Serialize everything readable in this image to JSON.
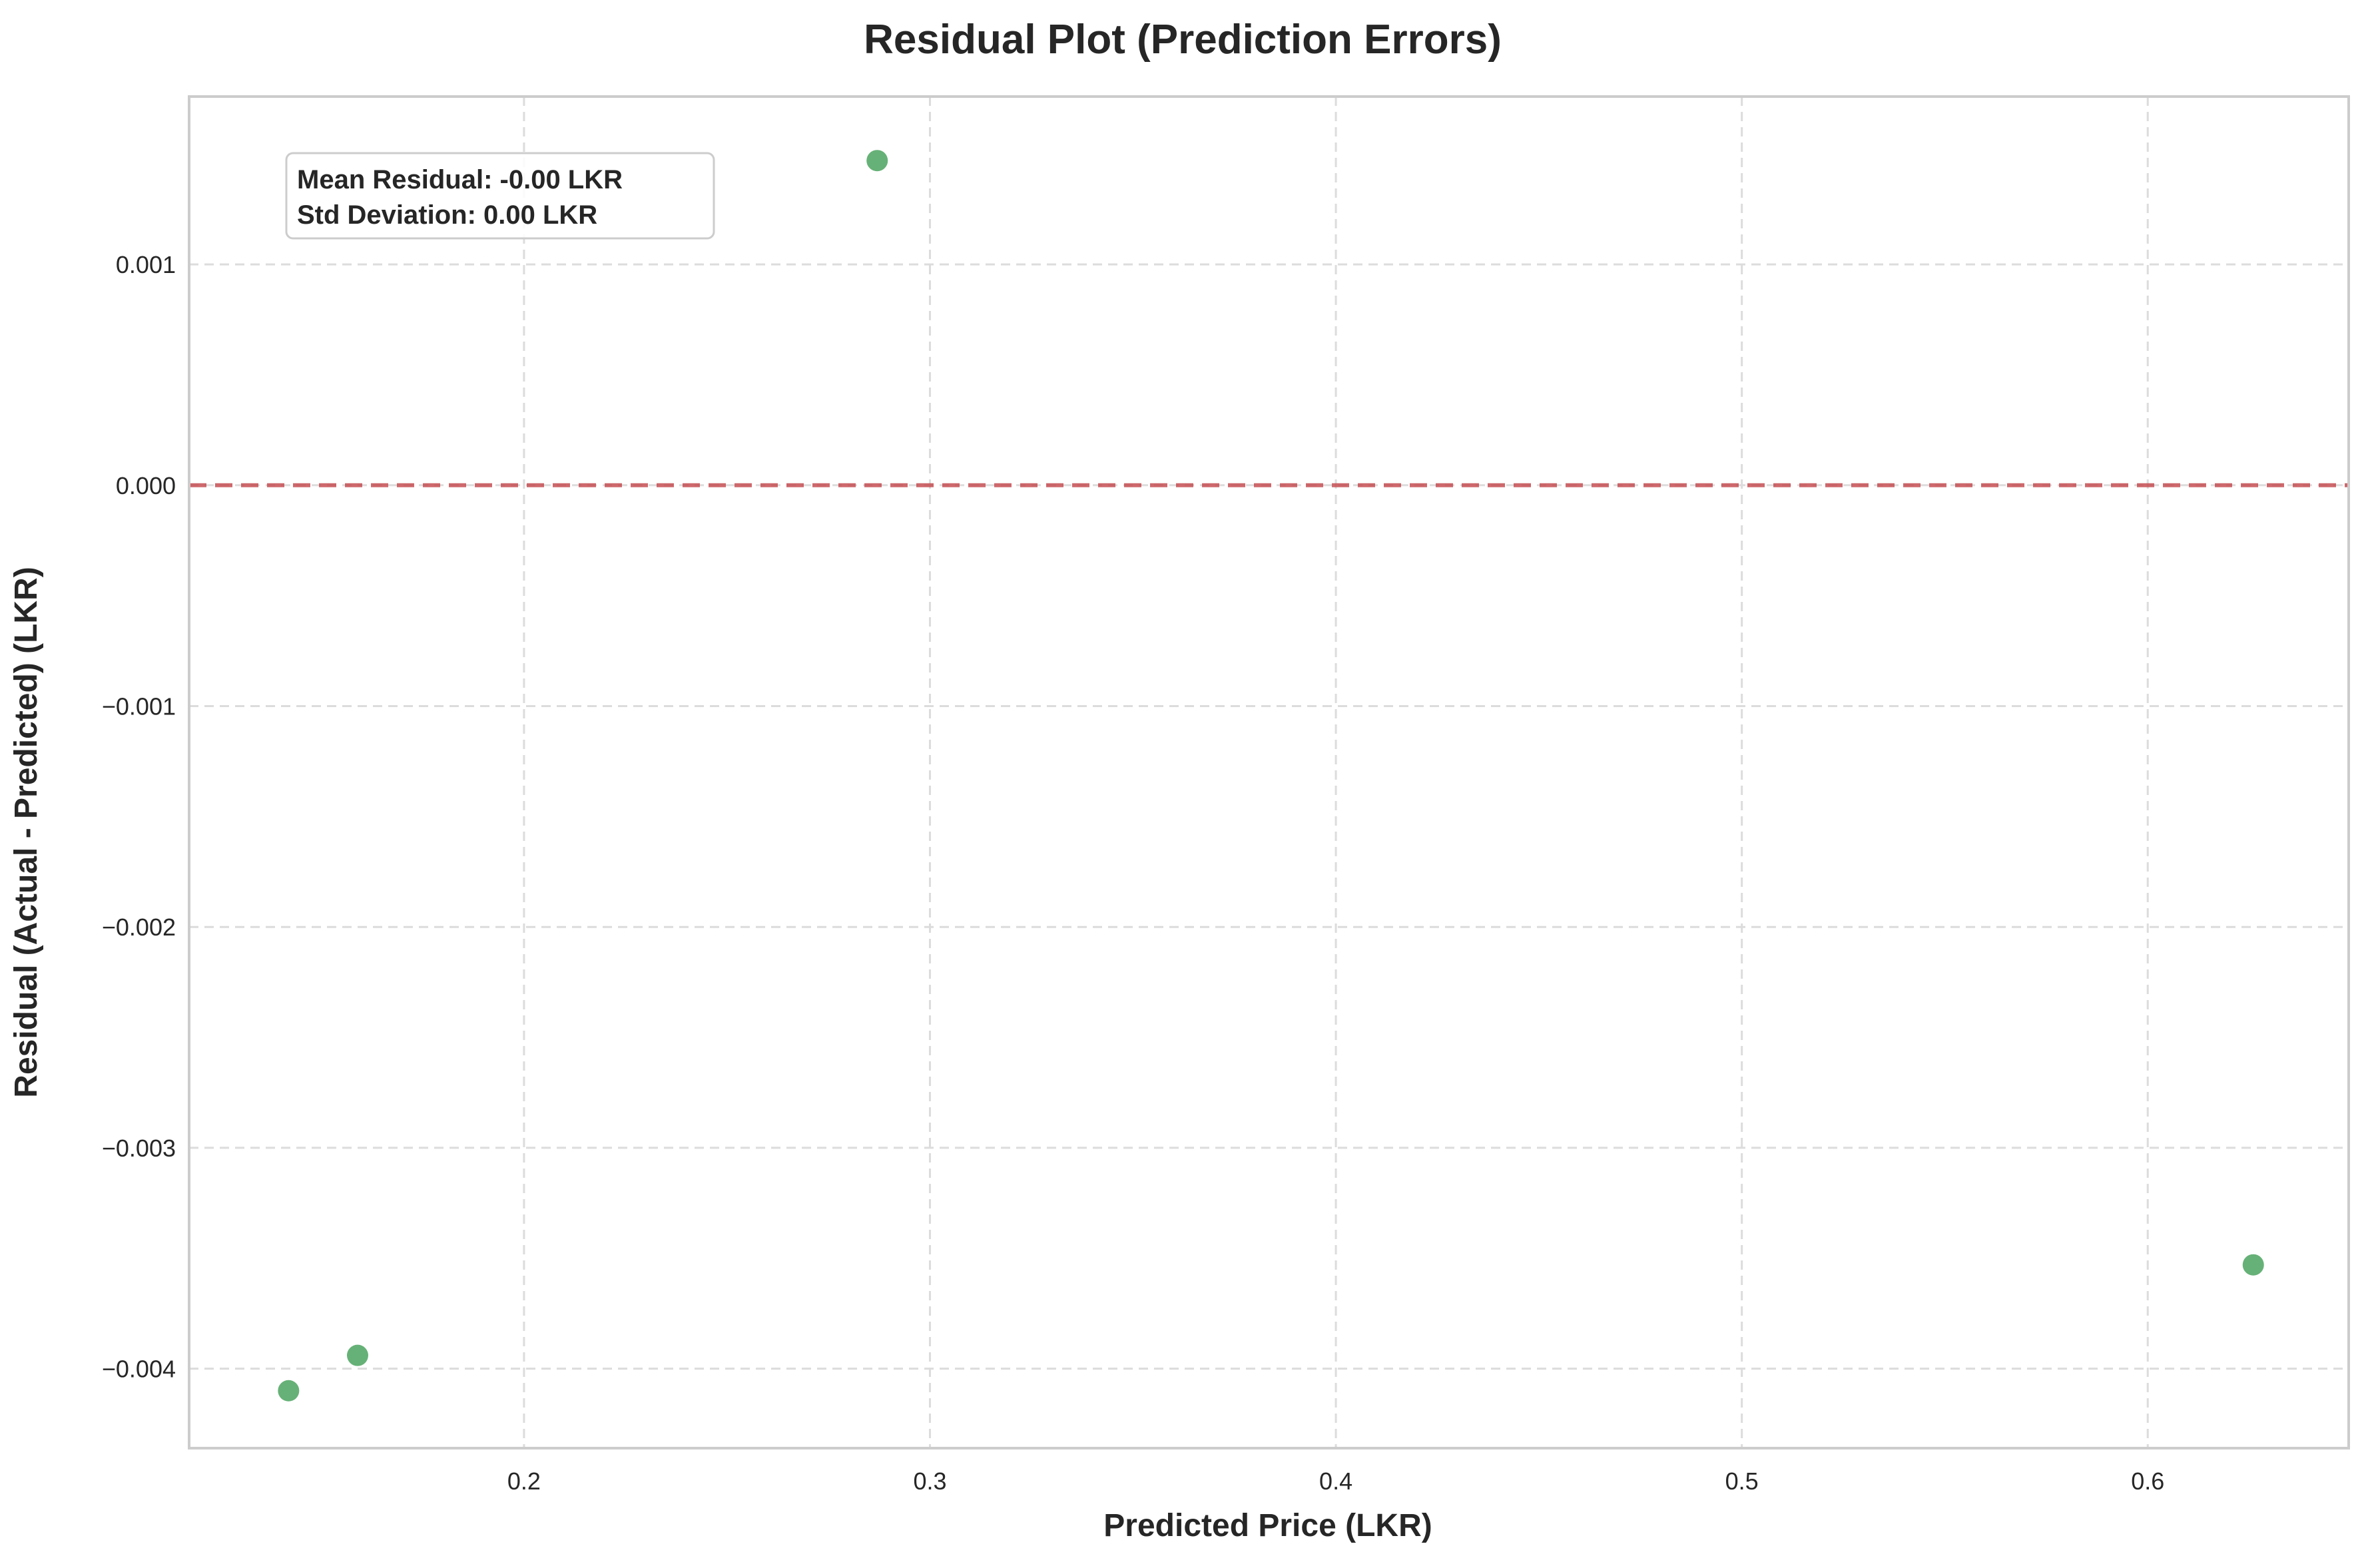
{
  "chart_data": {
    "type": "scatter",
    "title": "Residual Plot (Prediction Errors)",
    "xlabel": "Predicted Price (LKR)",
    "ylabel": "Residual (Actual - Predicted) (LKR)",
    "xlim": [
      0.1175,
      0.6495
    ],
    "ylim": [
      -0.00436,
      0.00176
    ],
    "xticks": [
      0.2,
      0.3,
      0.4,
      0.5,
      0.6
    ],
    "xtick_labels": [
      "0.2",
      "0.3",
      "0.4",
      "0.5",
      "0.6"
    ],
    "yticks": [
      0.001,
      0.0,
      -0.001,
      -0.002,
      -0.003,
      -0.004
    ],
    "ytick_labels": [
      "0.001",
      "0.000",
      "−0.001",
      "−0.002",
      "−0.003",
      "−0.004"
    ],
    "grid": true,
    "reference_line": {
      "y": 0.0,
      "style": "dashed",
      "color": "#c44e52"
    },
    "series": [
      {
        "color": "#55a868",
        "points": [
          {
            "x": 0.142,
            "y": -0.0041
          },
          {
            "x": 0.159,
            "y": -0.00394
          },
          {
            "x": 0.287,
            "y": 0.00147
          },
          {
            "x": 0.626,
            "y": -0.00353
          }
        ]
      }
    ],
    "annotation": {
      "lines": [
        "Mean Residual: -0.00 LKR",
        "Std Deviation: 0.00 LKR"
      ]
    }
  }
}
